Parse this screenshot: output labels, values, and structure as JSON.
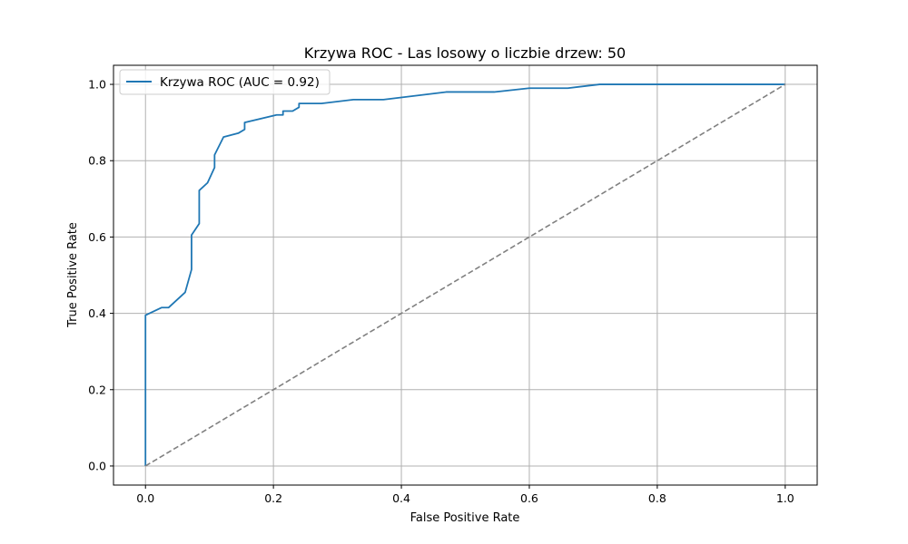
{
  "chart_data": {
    "type": "line",
    "title": "Krzywa ROC - Las losowy o liczbie drzew: 50",
    "xlabel": "False Positive Rate",
    "ylabel": "True Positive Rate",
    "xlim": [
      -0.05,
      1.05
    ],
    "ylim": [
      -0.05,
      1.05
    ],
    "xticks": [
      0.0,
      0.2,
      0.4,
      0.6,
      0.8,
      1.0
    ],
    "yticks": [
      0.0,
      0.2,
      0.4,
      0.6,
      0.8,
      1.0
    ],
    "xtick_labels": [
      "0.0",
      "0.2",
      "0.4",
      "0.6",
      "0.8",
      "1.0"
    ],
    "ytick_labels": [
      "0.0",
      "0.2",
      "0.4",
      "0.6",
      "0.8",
      "1.0"
    ],
    "grid": true,
    "legend_position": "top-left",
    "series": [
      {
        "name": "Krzywa ROC (AUC = 0.92)",
        "color": "#1f77b4",
        "style": "solid",
        "x": [
          0.0,
          0.0,
          0.025,
          0.036,
          0.062,
          0.072,
          0.072,
          0.084,
          0.084,
          0.097,
          0.108,
          0.108,
          0.122,
          0.145,
          0.155,
          0.155,
          0.205,
          0.215,
          0.215,
          0.23,
          0.24,
          0.24,
          0.275,
          0.325,
          0.372,
          0.47,
          0.545,
          0.6,
          0.66,
          0.71,
          1.0
        ],
        "y": [
          0.0,
          0.395,
          0.415,
          0.415,
          0.455,
          0.515,
          0.605,
          0.635,
          0.722,
          0.742,
          0.782,
          0.815,
          0.862,
          0.872,
          0.882,
          0.9,
          0.92,
          0.92,
          0.93,
          0.93,
          0.94,
          0.95,
          0.95,
          0.96,
          0.96,
          0.98,
          0.98,
          0.99,
          0.99,
          1.0,
          1.0
        ]
      },
      {
        "color": "#808080",
        "style": "dashed",
        "x": [
          0.0,
          1.0
        ],
        "y": [
          0.0,
          1.0
        ]
      }
    ]
  }
}
